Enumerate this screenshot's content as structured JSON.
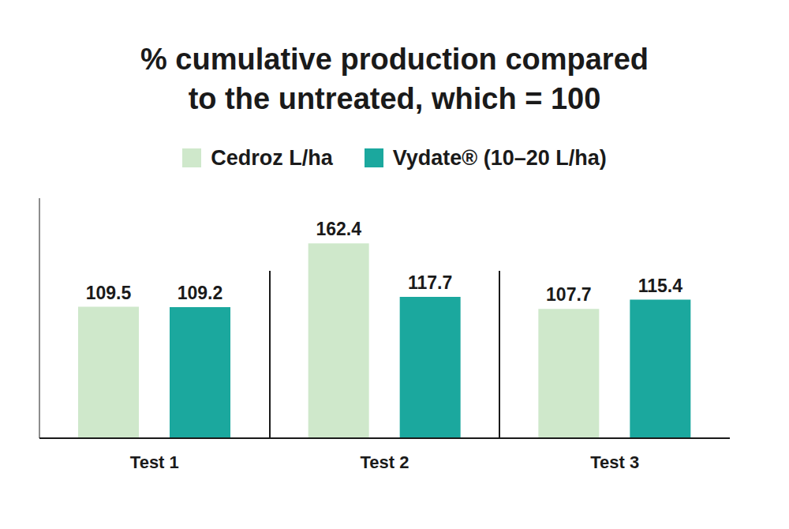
{
  "chart_data": {
    "type": "bar",
    "title": "% cumulative production compared\nto the untreated, which = 100",
    "categories": [
      "Test 1",
      "Test 2",
      "Test 3"
    ],
    "series": [
      {
        "name": "Cedroz L/ha",
        "color": "#cfe8cb",
        "values": [
          109.5,
          162.4,
          107.7
        ]
      },
      {
        "name": "Vydate® (10–20 L/ha)",
        "color": "#1ba89e",
        "values": [
          109.2,
          117.7,
          115.4
        ]
      }
    ],
    "ylim": [
      0,
      200
    ],
    "yticks": [],
    "grid": false,
    "legend": "top",
    "data_labels": true,
    "tick_labels": "x"
  }
}
